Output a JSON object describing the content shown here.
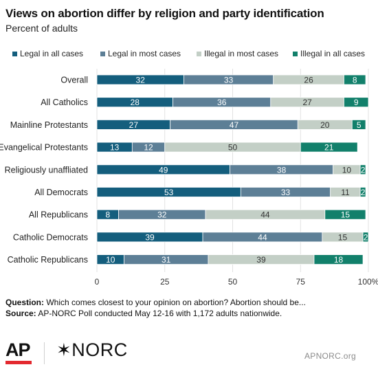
{
  "header": {
    "title": "Views on abortion differ by religion and party identification",
    "subtitle": "Percent of adults"
  },
  "notes": {
    "question_label": "Question:",
    "question_text": "Which comes closest to your opinion on abortion? Abortion should be...",
    "source_label": "Source:",
    "source_text": "AP-NORC Poll conducted May 12-16 with 1,172 adults nationwide."
  },
  "footer": {
    "ap_logo": "AP",
    "norc_mark": "✶",
    "norc_logo": "NORC",
    "site": "APNORC.org"
  },
  "chart_data": {
    "type": "bar",
    "orientation": "horizontal",
    "stacked": true,
    "categories": [
      "Overall",
      "All Catholics",
      "Mainline Protestants",
      "Evangelical Protestants",
      "Religiously unaffliated",
      "All Democrats",
      "All Republicans",
      "Catholic Democrats",
      "Catholic Republicans"
    ],
    "series": [
      {
        "name": "Legal in all cases",
        "color": "#145e7d",
        "label_color": "#ffffff",
        "values": [
          32,
          28,
          27,
          13,
          49,
          53,
          8,
          39,
          10
        ]
      },
      {
        "name": "Legal in most cases",
        "color": "#5d7f96",
        "label_color": "#ffffff",
        "values": [
          33,
          36,
          47,
          12,
          38,
          33,
          32,
          44,
          31
        ]
      },
      {
        "name": "Illegal in most cases",
        "color": "#c3cfc6",
        "label_color": "#333333",
        "values": [
          26,
          27,
          20,
          50,
          10,
          11,
          44,
          15,
          39
        ]
      },
      {
        "name": "Illegal in all cases",
        "color": "#12806b",
        "label_color": "#ffffff",
        "values": [
          8,
          9,
          5,
          21,
          2,
          2,
          15,
          2,
          18
        ]
      }
    ],
    "xlim": [
      0,
      100
    ],
    "xticks": [
      0,
      25,
      50,
      75,
      100
    ],
    "xtick_labels": [
      "0",
      "25",
      "50",
      "75",
      "100%"
    ],
    "gridlines": true,
    "legend_position": "top"
  }
}
